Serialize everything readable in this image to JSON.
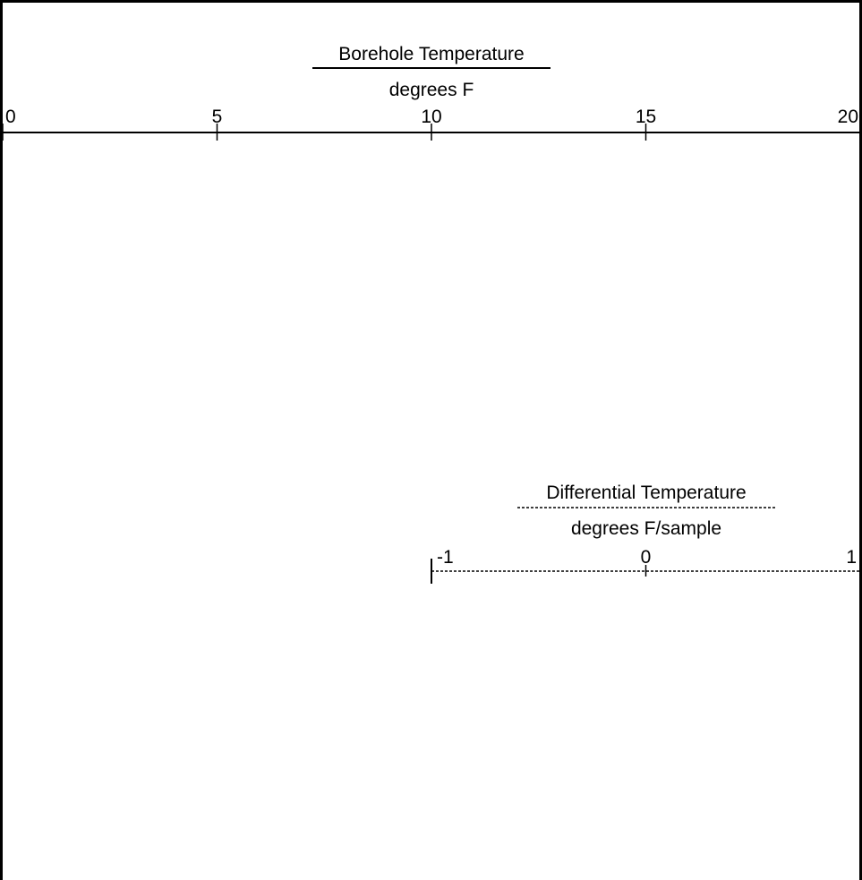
{
  "chart_data": [
    {
      "type": "line",
      "title": "Borehole Temperature",
      "xlabel": "degrees F",
      "xlim": [
        0,
        20
      ],
      "ticks": [
        0,
        5,
        10,
        15,
        20
      ],
      "tick_labels": [
        "0",
        "5",
        "10",
        "15",
        "20"
      ],
      "line_style": "solid",
      "color": "#000000",
      "series": []
    },
    {
      "type": "line",
      "title": "Differential Temperature",
      "xlabel": "degrees F/sample",
      "xlim": [
        -1,
        1
      ],
      "ticks": [
        -1,
        0,
        1
      ],
      "tick_labels": [
        "-1",
        "0",
        "1"
      ],
      "line_style": "dashed",
      "color": "#000000",
      "series": []
    }
  ]
}
